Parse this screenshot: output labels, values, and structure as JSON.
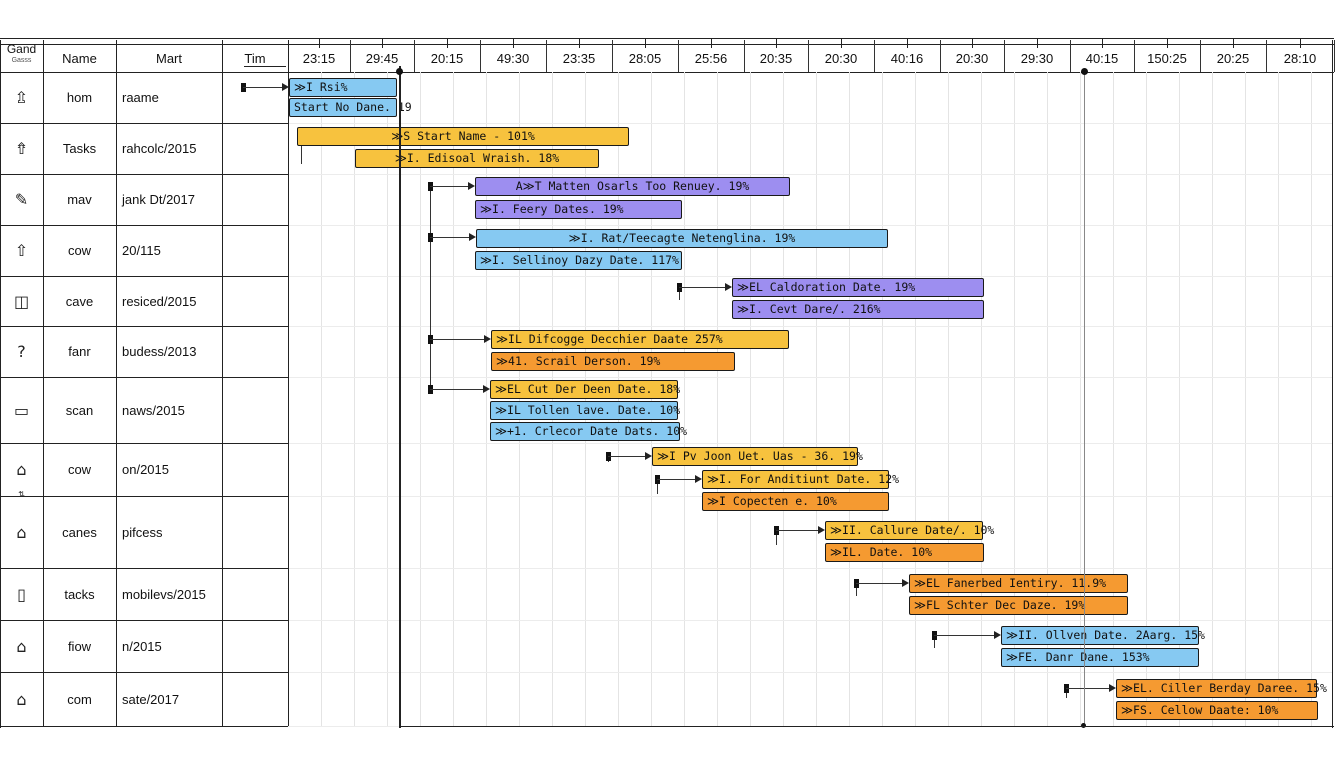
{
  "header": {
    "gantt_label": "Gand",
    "gantt_sub": "Gasss",
    "name_label": "Name",
    "mart_label": "Mart",
    "tim_label": "Tim"
  },
  "timeline": [
    "23:15",
    "29:45",
    "20:15",
    "49:30",
    "23:35",
    "28:05",
    "25:56",
    "20:35",
    "20:30",
    "40:16",
    "20:30",
    "29:30",
    "40:15",
    "150:25",
    "20:25",
    "28:10"
  ],
  "rows": [
    {
      "icon": "house-outline-icon",
      "glyph": "⇫",
      "name": "hom",
      "mart": "raame"
    },
    {
      "icon": "house-filled-icon",
      "glyph": "⇮",
      "name": "Tasks",
      "mart": "rahcolc/2015"
    },
    {
      "icon": "edit-icon",
      "glyph": "✎",
      "name": "mav",
      "mart": "jank Dt/2017"
    },
    {
      "icon": "arrow-up-icon",
      "glyph": "⇧",
      "name": "cow",
      "mart": "20/115"
    },
    {
      "icon": "camera-icon",
      "glyph": "◫",
      "name": "cave",
      "mart": "resiced/2015"
    },
    {
      "icon": "question-icon",
      "glyph": "?",
      "name": "fanr",
      "mart": "budess/2013"
    },
    {
      "icon": "folder-icon",
      "glyph": "▭",
      "name": "scan",
      "mart": "naws/2015"
    },
    {
      "icon": "building-icon",
      "glyph": "⌂",
      "name": "cow",
      "mart": "on/2015"
    },
    {
      "icon": "home-small-icon",
      "glyph": "⌂",
      "name": "canes",
      "mart": "pifcess"
    },
    {
      "icon": "window-icon",
      "glyph": "▯",
      "name": "tacks",
      "mart": "mobilevs/2015"
    },
    {
      "icon": "home-outline-icon",
      "glyph": "⌂",
      "name": "fiow",
      "mart": "n/2015"
    },
    {
      "icon": "store-icon",
      "glyph": "⌂",
      "name": "com",
      "mart": "sate/2017"
    }
  ],
  "bars": [
    {
      "label": "≫I Rsi%",
      "color": "blue"
    },
    {
      "label": "Start No Dane. 19",
      "color": "blue"
    },
    {
      "label": "≫S Start Name - 101%",
      "color": "yellow"
    },
    {
      "label": "≫I. Edisoal Wraish. 18%",
      "color": "yellow"
    },
    {
      "label": "A≫T Matten Osarls Too Renuey. 19%",
      "color": "purple"
    },
    {
      "label": "≫I. Feery Dates. 19%",
      "color": "purple"
    },
    {
      "label": "≫I. Rat/Teecagte Netenglina. 19%",
      "color": "blue"
    },
    {
      "label": "≫I. Sellinoy Dazy Date. 117%",
      "color": "blue"
    },
    {
      "label": "≫EL Caldoration Date. 19%",
      "color": "purple"
    },
    {
      "label": "≫I. Cevt Dare/. 216%",
      "color": "purple"
    },
    {
      "label": "≫IL Difcogge Decchier Daate 257%",
      "color": "yellow"
    },
    {
      "label": "≫41. Scrail Derson. 19%",
      "color": "orange"
    },
    {
      "label": "≫EL Cut Der Deen Date. 18%",
      "color": "yellow"
    },
    {
      "label": "≫IL Tollen lave. Date. 10%",
      "color": "blue"
    },
    {
      "label": "≫+1. Crlecor Date Dats. 10%",
      "color": "blue"
    },
    {
      "label": "≫I Pv Joon Uet. Uas - 36. 19%",
      "color": "yellow"
    },
    {
      "label": "≫I. For Anditiunt Date. 12%",
      "color": "yellow"
    },
    {
      "label": "≫I Copecten e. 10%",
      "color": "orange"
    },
    {
      "label": "≫II. Callure Date/. 10%",
      "color": "yellow"
    },
    {
      "label": "≫IL. Date. 10%",
      "color": "orange"
    },
    {
      "label": "≫EL Fanerbed Ientiry. 11.9%",
      "color": "orange"
    },
    {
      "label": "≫FL Schter Dec Daze. 19%",
      "color": "orange"
    },
    {
      "label": "≫II. Ollven Date. 2Aarg. 15%",
      "color": "blue"
    },
    {
      "label": "≫FE. Danr Dane. 153%",
      "color": "blue"
    },
    {
      "label": "≫EL. Ciller Berday Daree. 15%",
      "color": "orange"
    },
    {
      "label": "≫FS. Cellow Daate: 10%",
      "color": "orange"
    }
  ],
  "colors": {
    "blue": "#86c9f2",
    "yellow": "#f7c23e",
    "purple": "#9d8ef0",
    "orange": "#f59a31"
  }
}
